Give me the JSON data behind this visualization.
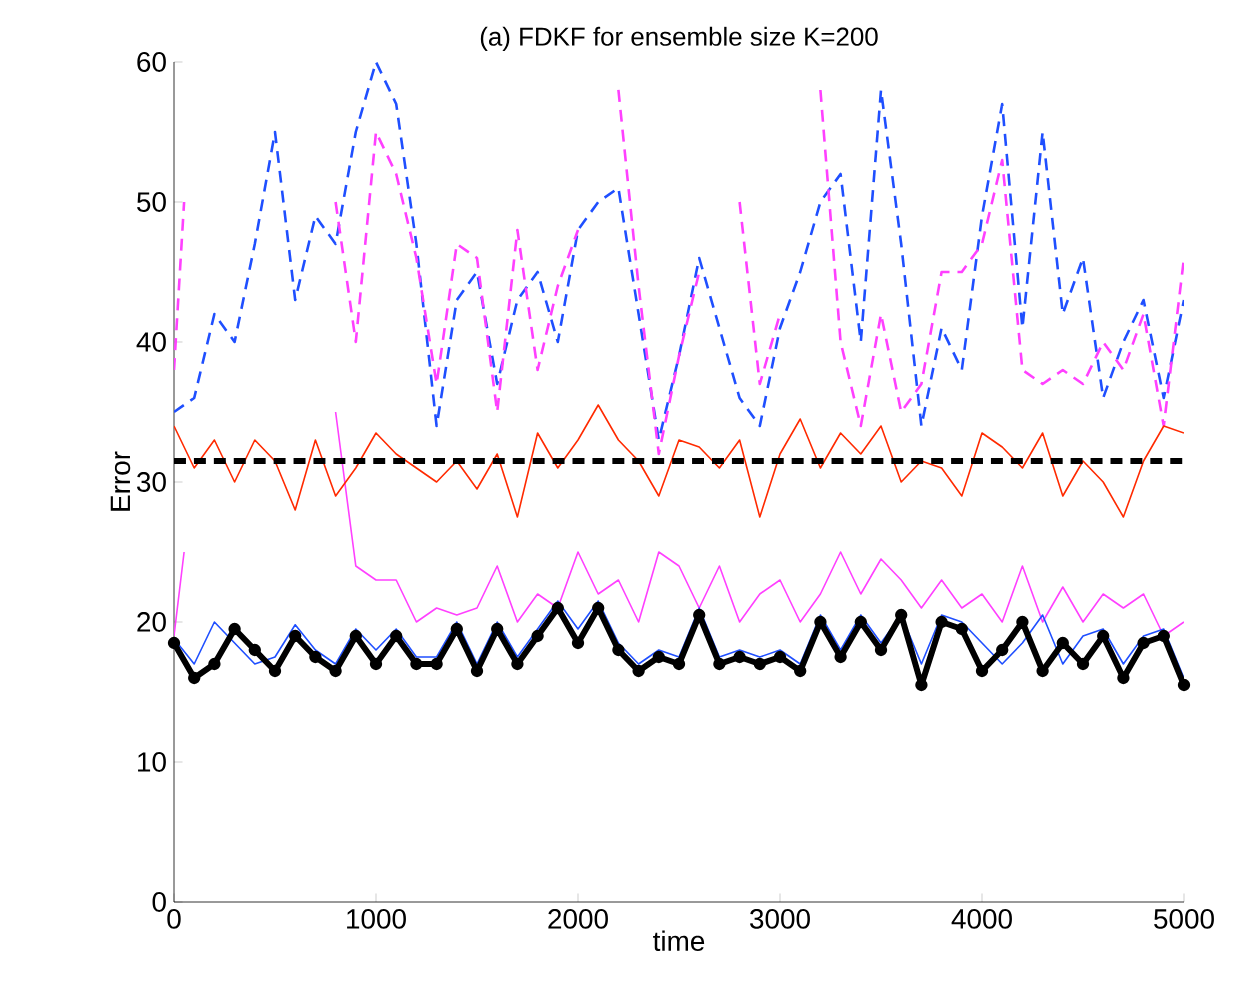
{
  "chart_data": {
    "type": "line",
    "title": "(a) FDKF for ensemble size K=200",
    "xlabel": "time",
    "ylabel": "Error",
    "x": [
      0,
      100,
      200,
      300,
      400,
      500,
      600,
      700,
      800,
      900,
      1000,
      1100,
      1200,
      1300,
      1400,
      1500,
      1600,
      1700,
      1800,
      1900,
      2000,
      2100,
      2200,
      2300,
      2400,
      2500,
      2600,
      2700,
      2800,
      2900,
      3000,
      3100,
      3200,
      3300,
      3400,
      3500,
      3600,
      3700,
      3800,
      3900,
      4000,
      4100,
      4200,
      4300,
      4400,
      4500,
      4600,
      4700,
      4800,
      4900,
      5000
    ],
    "xlim": [
      0,
      5000
    ],
    "ylim": [
      0,
      60
    ],
    "xticks": [
      0,
      1000,
      2000,
      3000,
      4000,
      5000
    ],
    "yticks": [
      0,
      10,
      20,
      30,
      40,
      50,
      60
    ],
    "grid": false,
    "series": [
      {
        "color": "#1f4fff",
        "line_style": "dashed",
        "values": [
          35,
          36,
          42,
          40,
          47,
          55,
          43,
          49,
          47,
          55,
          60,
          57,
          47,
          34,
          43,
          45,
          37,
          43,
          45,
          40,
          48,
          50,
          51,
          42,
          33,
          39,
          46,
          41,
          36,
          34,
          41,
          45,
          50,
          52,
          40,
          58,
          47,
          34,
          41,
          38,
          49,
          57,
          41,
          55,
          42,
          46,
          36,
          40,
          43,
          36,
          43
        ]
      },
      {
        "color": "#ff40ff",
        "line_style": "dashed",
        "x": [
          0,
          50,
          100,
          200,
          300,
          400,
          500,
          600,
          700,
          800,
          900,
          1000,
          1100,
          1200,
          1300,
          1400,
          1500,
          1600,
          1700,
          1800,
          1900,
          2000,
          2100,
          2200,
          2300,
          2400,
          2500,
          2600,
          2700,
          2800,
          2900,
          3000,
          3100,
          3200,
          3300,
          3400,
          3500,
          3600,
          3700,
          3800,
          3900,
          4000,
          4100,
          4200,
          4300,
          4400,
          4500,
          4600,
          4700,
          4800,
          4900,
          5000
        ],
        "values": [
          38,
          50,
          null,
          null,
          null,
          null,
          null,
          null,
          null,
          50,
          40,
          55,
          52,
          46,
          37,
          47,
          46,
          35,
          48,
          38,
          44,
          48,
          null,
          58,
          44,
          32,
          39,
          45,
          null,
          50,
          37,
          42,
          null,
          58,
          40,
          34,
          42,
          35,
          37,
          45,
          45,
          47,
          53,
          38,
          37,
          38,
          37,
          40,
          38,
          42,
          34,
          46
        ]
      },
      {
        "color": "#ff40ff",
        "line_style": "solid",
        "x": [
          0,
          50,
          100,
          200,
          300,
          400,
          500,
          600,
          700,
          800,
          900,
          1000,
          1100,
          1200,
          1300,
          1400,
          1500,
          1600,
          1700,
          1800,
          1900,
          2000,
          2100,
          2200,
          2300,
          2400,
          2500,
          2600,
          2700,
          2800,
          2900,
          3000,
          3100,
          3200,
          3300,
          3400,
          3500,
          3600,
          3700,
          3800,
          3900,
          4000,
          4100,
          4200,
          4300,
          4400,
          4500,
          4600,
          4700,
          4800,
          4900,
          5000
        ],
        "values": [
          19,
          25,
          null,
          null,
          null,
          null,
          null,
          null,
          null,
          35,
          24,
          23,
          23,
          20,
          21,
          20.5,
          21,
          24,
          20,
          22,
          21,
          25,
          22,
          23,
          20,
          25,
          24,
          21,
          24,
          20,
          22,
          23,
          20,
          22,
          25,
          22,
          24.5,
          23,
          21,
          23,
          21,
          22,
          20,
          24,
          20,
          22.5,
          20,
          22,
          21,
          22,
          19,
          20
        ]
      },
      {
        "color": "#ff2a00",
        "line_style": "solid",
        "values": [
          34,
          31,
          33,
          30,
          33,
          31.5,
          28,
          33,
          29,
          31,
          33.5,
          32,
          31,
          30,
          31.5,
          29.5,
          32,
          27.5,
          33.5,
          31,
          33,
          35.5,
          33,
          31.5,
          29,
          33,
          32.5,
          31,
          33,
          27.5,
          32,
          34.5,
          31,
          33.5,
          32,
          34,
          30,
          31.5,
          31,
          29,
          33.5,
          32.5,
          31,
          33.5,
          29,
          31.5,
          30,
          27.5,
          31.5,
          34,
          33.5
        ]
      },
      {
        "color": "#1f4fff",
        "line_style": "solid",
        "values": [
          18.8,
          17,
          20,
          18.5,
          17,
          17.5,
          19.8,
          18,
          17,
          19.5,
          18,
          19.5,
          17.5,
          17.5,
          20,
          17,
          20,
          17.5,
          19.5,
          21.5,
          19.5,
          21.5,
          18.5,
          17,
          18,
          17.5,
          21,
          17.5,
          18,
          17.5,
          18,
          17,
          20.5,
          18,
          20.5,
          18.5,
          20.5,
          17,
          20.5,
          20,
          18.5,
          17,
          18.5,
          20.5,
          17,
          19,
          19.5,
          17,
          19,
          19.5,
          16
        ]
      },
      {
        "color": "#000000",
        "line_style": "solid",
        "marker": "circle",
        "values": [
          18.5,
          16,
          17,
          19.5,
          18,
          16.5,
          19,
          17.5,
          16.5,
          19,
          17,
          19,
          17,
          17,
          19.5,
          16.5,
          19.5,
          17,
          19,
          21,
          18.5,
          21,
          18,
          16.5,
          17.5,
          17,
          20.5,
          17,
          17.5,
          17,
          17.5,
          16.5,
          20,
          17.5,
          20,
          18,
          20.5,
          15.5,
          20,
          19.5,
          16.5,
          18,
          20,
          16.5,
          18.5,
          17,
          19,
          16,
          18.5,
          19,
          15.5
        ]
      }
    ],
    "ref_lines": [
      {
        "axis": "y",
        "value": 31.5,
        "color": "#000000",
        "line_style": "dashed"
      }
    ]
  }
}
